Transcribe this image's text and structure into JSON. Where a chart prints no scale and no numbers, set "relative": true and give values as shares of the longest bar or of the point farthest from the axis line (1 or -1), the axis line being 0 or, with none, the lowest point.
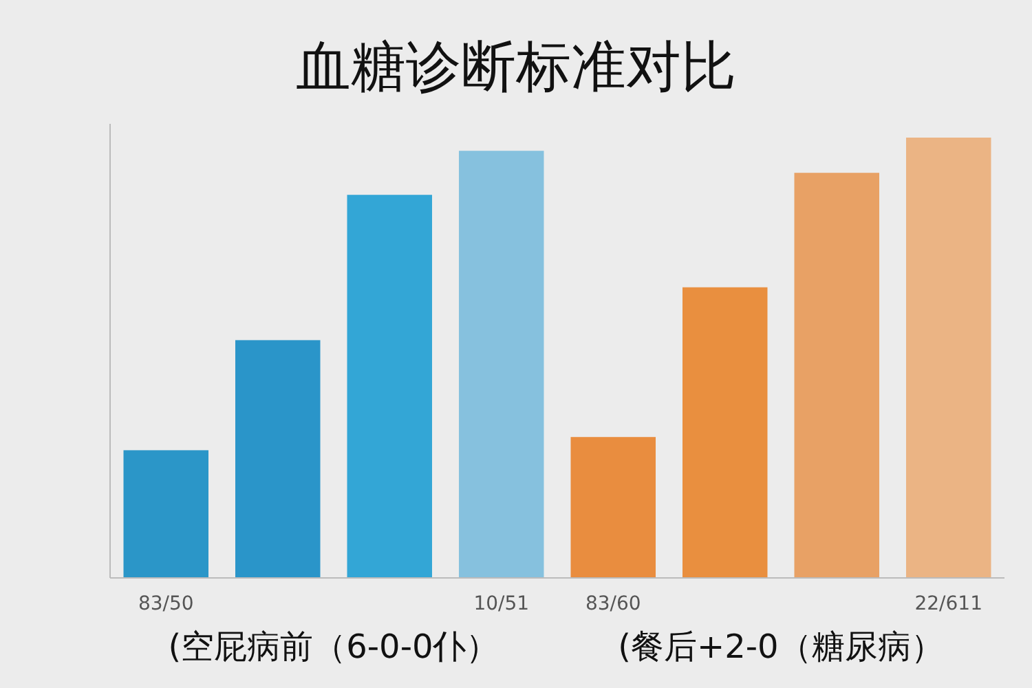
{
  "chart_data": {
    "type": "bar",
    "title": "血糖诊断标准对比",
    "categories": [
      "83/50",
      null,
      null,
      "10/51",
      "83/60",
      null,
      null,
      "22/611"
    ],
    "values": [
      0.29,
      0.54,
      0.87,
      0.97,
      0.32,
      0.66,
      0.92,
      1
    ],
    "colors": [
      "#2b96c8",
      "#2a95c9",
      "#33a6d6",
      "#86c1de",
      "#e98d3f",
      "#e98f3f",
      "#e8a165",
      "#ebb484"
    ],
    "relative": true,
    "annotations": [
      "(空屁病前（6-0-0仆）",
      "(餐后+2-0（糖尿病）"
    ]
  }
}
